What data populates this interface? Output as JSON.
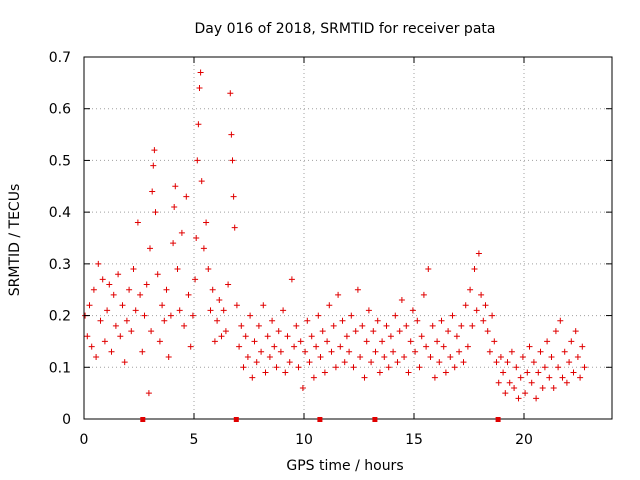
{
  "chart_data": {
    "type": "scatter",
    "title": "Day 016 of 2018, SRMTID for receiver pata",
    "xlabel": "GPS time / hours",
    "ylabel": "SRMTID / TECUs",
    "xlim": [
      0,
      24
    ],
    "ylim": [
      0,
      0.7
    ],
    "x_ticks": [
      0,
      5,
      10,
      15,
      20
    ],
    "y_ticks": [
      0,
      0.1,
      0.2,
      0.3,
      0.4,
      0.5,
      0.6,
      0.7
    ],
    "x_tick_labels": [
      "0",
      "5",
      "10",
      "15",
      "20"
    ],
    "y_tick_labels": [
      "0",
      "0.1",
      "0.2",
      "0.3",
      "0.4",
      "0.5",
      "0.6",
      "0.7"
    ],
    "grid": true,
    "color": "#e00000",
    "marker": "plus",
    "series": [
      {
        "name": "SRMTID",
        "points": [
          [
            0.05,
            0.2
          ],
          [
            0.15,
            0.16
          ],
          [
            0.25,
            0.22
          ],
          [
            0.35,
            0.14
          ],
          [
            0.45,
            0.25
          ],
          [
            0.55,
            0.12
          ],
          [
            0.65,
            0.3
          ],
          [
            0.75,
            0.19
          ],
          [
            0.85,
            0.27
          ],
          [
            0.95,
            0.15
          ],
          [
            1.05,
            0.21
          ],
          [
            1.15,
            0.26
          ],
          [
            1.25,
            0.13
          ],
          [
            1.35,
            0.24
          ],
          [
            1.45,
            0.18
          ],
          [
            1.55,
            0.28
          ],
          [
            1.65,
            0.16
          ],
          [
            1.75,
            0.22
          ],
          [
            1.85,
            0.11
          ],
          [
            1.95,
            0.19
          ],
          [
            2.05,
            0.25
          ],
          [
            2.15,
            0.17
          ],
          [
            2.25,
            0.29
          ],
          [
            2.35,
            0.21
          ],
          [
            2.45,
            0.38
          ],
          [
            2.55,
            0.24
          ],
          [
            2.65,
            0.13
          ],
          [
            2.75,
            0.2
          ],
          [
            2.85,
            0.26
          ],
          [
            2.95,
            0.05
          ],
          [
            3.0,
            0.33
          ],
          [
            3.05,
            0.17
          ],
          [
            3.1,
            0.44
          ],
          [
            3.15,
            0.49
          ],
          [
            3.2,
            0.52
          ],
          [
            3.25,
            0.4
          ],
          [
            3.35,
            0.28
          ],
          [
            3.45,
            0.15
          ],
          [
            3.55,
            0.22
          ],
          [
            3.65,
            0.19
          ],
          [
            3.75,
            0.25
          ],
          [
            3.85,
            0.12
          ],
          [
            3.95,
            0.2
          ],
          [
            4.05,
            0.34
          ],
          [
            4.1,
            0.41
          ],
          [
            4.15,
            0.45
          ],
          [
            4.25,
            0.29
          ],
          [
            4.35,
            0.21
          ],
          [
            4.45,
            0.36
          ],
          [
            4.55,
            0.18
          ],
          [
            4.65,
            0.43
          ],
          [
            4.75,
            0.24
          ],
          [
            4.85,
            0.14
          ],
          [
            4.95,
            0.2
          ],
          [
            5.05,
            0.27
          ],
          [
            5.1,
            0.35
          ],
          [
            5.15,
            0.5
          ],
          [
            5.2,
            0.57
          ],
          [
            5.25,
            0.64
          ],
          [
            5.3,
            0.67
          ],
          [
            5.35,
            0.46
          ],
          [
            5.45,
            0.33
          ],
          [
            5.55,
            0.38
          ],
          [
            5.65,
            0.29
          ],
          [
            5.75,
            0.21
          ],
          [
            5.85,
            0.25
          ],
          [
            5.95,
            0.15
          ],
          [
            6.05,
            0.19
          ],
          [
            6.15,
            0.23
          ],
          [
            6.25,
            0.16
          ],
          [
            6.35,
            0.21
          ],
          [
            6.45,
            0.17
          ],
          [
            6.55,
            0.26
          ],
          [
            6.65,
            0.63
          ],
          [
            6.7,
            0.55
          ],
          [
            6.75,
            0.5
          ],
          [
            6.8,
            0.43
          ],
          [
            6.85,
            0.37
          ],
          [
            6.95,
            0.22
          ],
          [
            7.05,
            0.14
          ],
          [
            7.15,
            0.18
          ],
          [
            7.25,
            0.1
          ],
          [
            7.35,
            0.16
          ],
          [
            7.45,
            0.12
          ],
          [
            7.55,
            0.2
          ],
          [
            7.65,
            0.08
          ],
          [
            7.75,
            0.15
          ],
          [
            7.85,
            0.11
          ],
          [
            7.95,
            0.18
          ],
          [
            8.05,
            0.13
          ],
          [
            8.15,
            0.22
          ],
          [
            8.25,
            0.09
          ],
          [
            8.35,
            0.16
          ],
          [
            8.45,
            0.12
          ],
          [
            8.55,
            0.19
          ],
          [
            8.65,
            0.14
          ],
          [
            8.75,
            0.1
          ],
          [
            8.85,
            0.17
          ],
          [
            8.95,
            0.13
          ],
          [
            9.05,
            0.21
          ],
          [
            9.15,
            0.09
          ],
          [
            9.25,
            0.16
          ],
          [
            9.35,
            0.11
          ],
          [
            9.45,
            0.27
          ],
          [
            9.55,
            0.14
          ],
          [
            9.65,
            0.18
          ],
          [
            9.75,
            0.1
          ],
          [
            9.85,
            0.15
          ],
          [
            9.95,
            0.06
          ],
          [
            10.05,
            0.13
          ],
          [
            10.15,
            0.19
          ],
          [
            10.25,
            0.11
          ],
          [
            10.35,
            0.16
          ],
          [
            10.45,
            0.08
          ],
          [
            10.55,
            0.14
          ],
          [
            10.65,
            0.2
          ],
          [
            10.75,
            0.12
          ],
          [
            10.85,
            0.17
          ],
          [
            10.95,
            0.09
          ],
          [
            11.05,
            0.15
          ],
          [
            11.15,
            0.22
          ],
          [
            11.25,
            0.13
          ],
          [
            11.35,
            0.18
          ],
          [
            11.45,
            0.1
          ],
          [
            11.55,
            0.24
          ],
          [
            11.65,
            0.14
          ],
          [
            11.75,
            0.19
          ],
          [
            11.85,
            0.11
          ],
          [
            11.95,
            0.16
          ],
          [
            12.05,
            0.13
          ],
          [
            12.15,
            0.2
          ],
          [
            12.25,
            0.1
          ],
          [
            12.35,
            0.17
          ],
          [
            12.45,
            0.25
          ],
          [
            12.55,
            0.12
          ],
          [
            12.65,
            0.18
          ],
          [
            12.75,
            0.08
          ],
          [
            12.85,
            0.15
          ],
          [
            12.95,
            0.21
          ],
          [
            13.05,
            0.11
          ],
          [
            13.15,
            0.17
          ],
          [
            13.25,
            0.13
          ],
          [
            13.35,
            0.19
          ],
          [
            13.45,
            0.09
          ],
          [
            13.55,
            0.15
          ],
          [
            13.65,
            0.12
          ],
          [
            13.75,
            0.18
          ],
          [
            13.85,
            0.1
          ],
          [
            13.95,
            0.16
          ],
          [
            14.05,
            0.13
          ],
          [
            14.15,
            0.2
          ],
          [
            14.25,
            0.11
          ],
          [
            14.35,
            0.17
          ],
          [
            14.45,
            0.23
          ],
          [
            14.55,
            0.12
          ],
          [
            14.65,
            0.18
          ],
          [
            14.75,
            0.09
          ],
          [
            14.85,
            0.15
          ],
          [
            14.95,
            0.21
          ],
          [
            15.05,
            0.13
          ],
          [
            15.15,
            0.19
          ],
          [
            15.25,
            0.1
          ],
          [
            15.35,
            0.16
          ],
          [
            15.45,
            0.24
          ],
          [
            15.55,
            0.14
          ],
          [
            15.65,
            0.29
          ],
          [
            15.75,
            0.12
          ],
          [
            15.85,
            0.18
          ],
          [
            15.95,
            0.08
          ],
          [
            16.05,
            0.15
          ],
          [
            16.15,
            0.11
          ],
          [
            16.25,
            0.19
          ],
          [
            16.35,
            0.14
          ],
          [
            16.45,
            0.09
          ],
          [
            16.55,
            0.17
          ],
          [
            16.65,
            0.12
          ],
          [
            16.75,
            0.2
          ],
          [
            16.85,
            0.1
          ],
          [
            16.95,
            0.16
          ],
          [
            17.05,
            0.13
          ],
          [
            17.15,
            0.18
          ],
          [
            17.25,
            0.11
          ],
          [
            17.35,
            0.22
          ],
          [
            17.45,
            0.14
          ],
          [
            17.55,
            0.25
          ],
          [
            17.65,
            0.18
          ],
          [
            17.75,
            0.29
          ],
          [
            17.85,
            0.21
          ],
          [
            17.95,
            0.32
          ],
          [
            18.05,
            0.24
          ],
          [
            18.15,
            0.19
          ],
          [
            18.25,
            0.22
          ],
          [
            18.35,
            0.17
          ],
          [
            18.45,
            0.13
          ],
          [
            18.55,
            0.2
          ],
          [
            18.65,
            0.15
          ],
          [
            18.75,
            0.11
          ],
          [
            18.85,
            0.07
          ],
          [
            18.95,
            0.12
          ],
          [
            19.05,
            0.09
          ],
          [
            19.15,
            0.05
          ],
          [
            19.25,
            0.11
          ],
          [
            19.35,
            0.07
          ],
          [
            19.45,
            0.13
          ],
          [
            19.55,
            0.06
          ],
          [
            19.65,
            0.1
          ],
          [
            19.75,
            0.04
          ],
          [
            19.85,
            0.08
          ],
          [
            19.95,
            0.12
          ],
          [
            20.05,
            0.05
          ],
          [
            20.15,
            0.09
          ],
          [
            20.25,
            0.14
          ],
          [
            20.35,
            0.07
          ],
          [
            20.45,
            0.11
          ],
          [
            20.55,
            0.04
          ],
          [
            20.65,
            0.09
          ],
          [
            20.75,
            0.13
          ],
          [
            20.85,
            0.06
          ],
          [
            20.95,
            0.1
          ],
          [
            21.05,
            0.15
          ],
          [
            21.15,
            0.08
          ],
          [
            21.25,
            0.12
          ],
          [
            21.35,
            0.06
          ],
          [
            21.45,
            0.17
          ],
          [
            21.55,
            0.1
          ],
          [
            21.65,
            0.19
          ],
          [
            21.75,
            0.08
          ],
          [
            21.85,
            0.13
          ],
          [
            21.95,
            0.07
          ],
          [
            22.05,
            0.11
          ],
          [
            22.15,
            0.15
          ],
          [
            22.25,
            0.09
          ],
          [
            22.35,
            0.17
          ],
          [
            22.45,
            0.12
          ],
          [
            22.55,
            0.08
          ],
          [
            22.65,
            0.14
          ],
          [
            22.75,
            0.1
          ]
        ]
      }
    ],
    "markers": [
      {
        "name": "red-marker",
        "x": 2.65,
        "y": 0
      },
      {
        "name": "red-marker",
        "x": 6.9,
        "y": 0
      },
      {
        "name": "red-marker",
        "x": 10.7,
        "y": 0
      },
      {
        "name": "red-marker",
        "x": 13.2,
        "y": 0
      },
      {
        "name": "red-marker",
        "x": 18.8,
        "y": 0
      }
    ]
  }
}
